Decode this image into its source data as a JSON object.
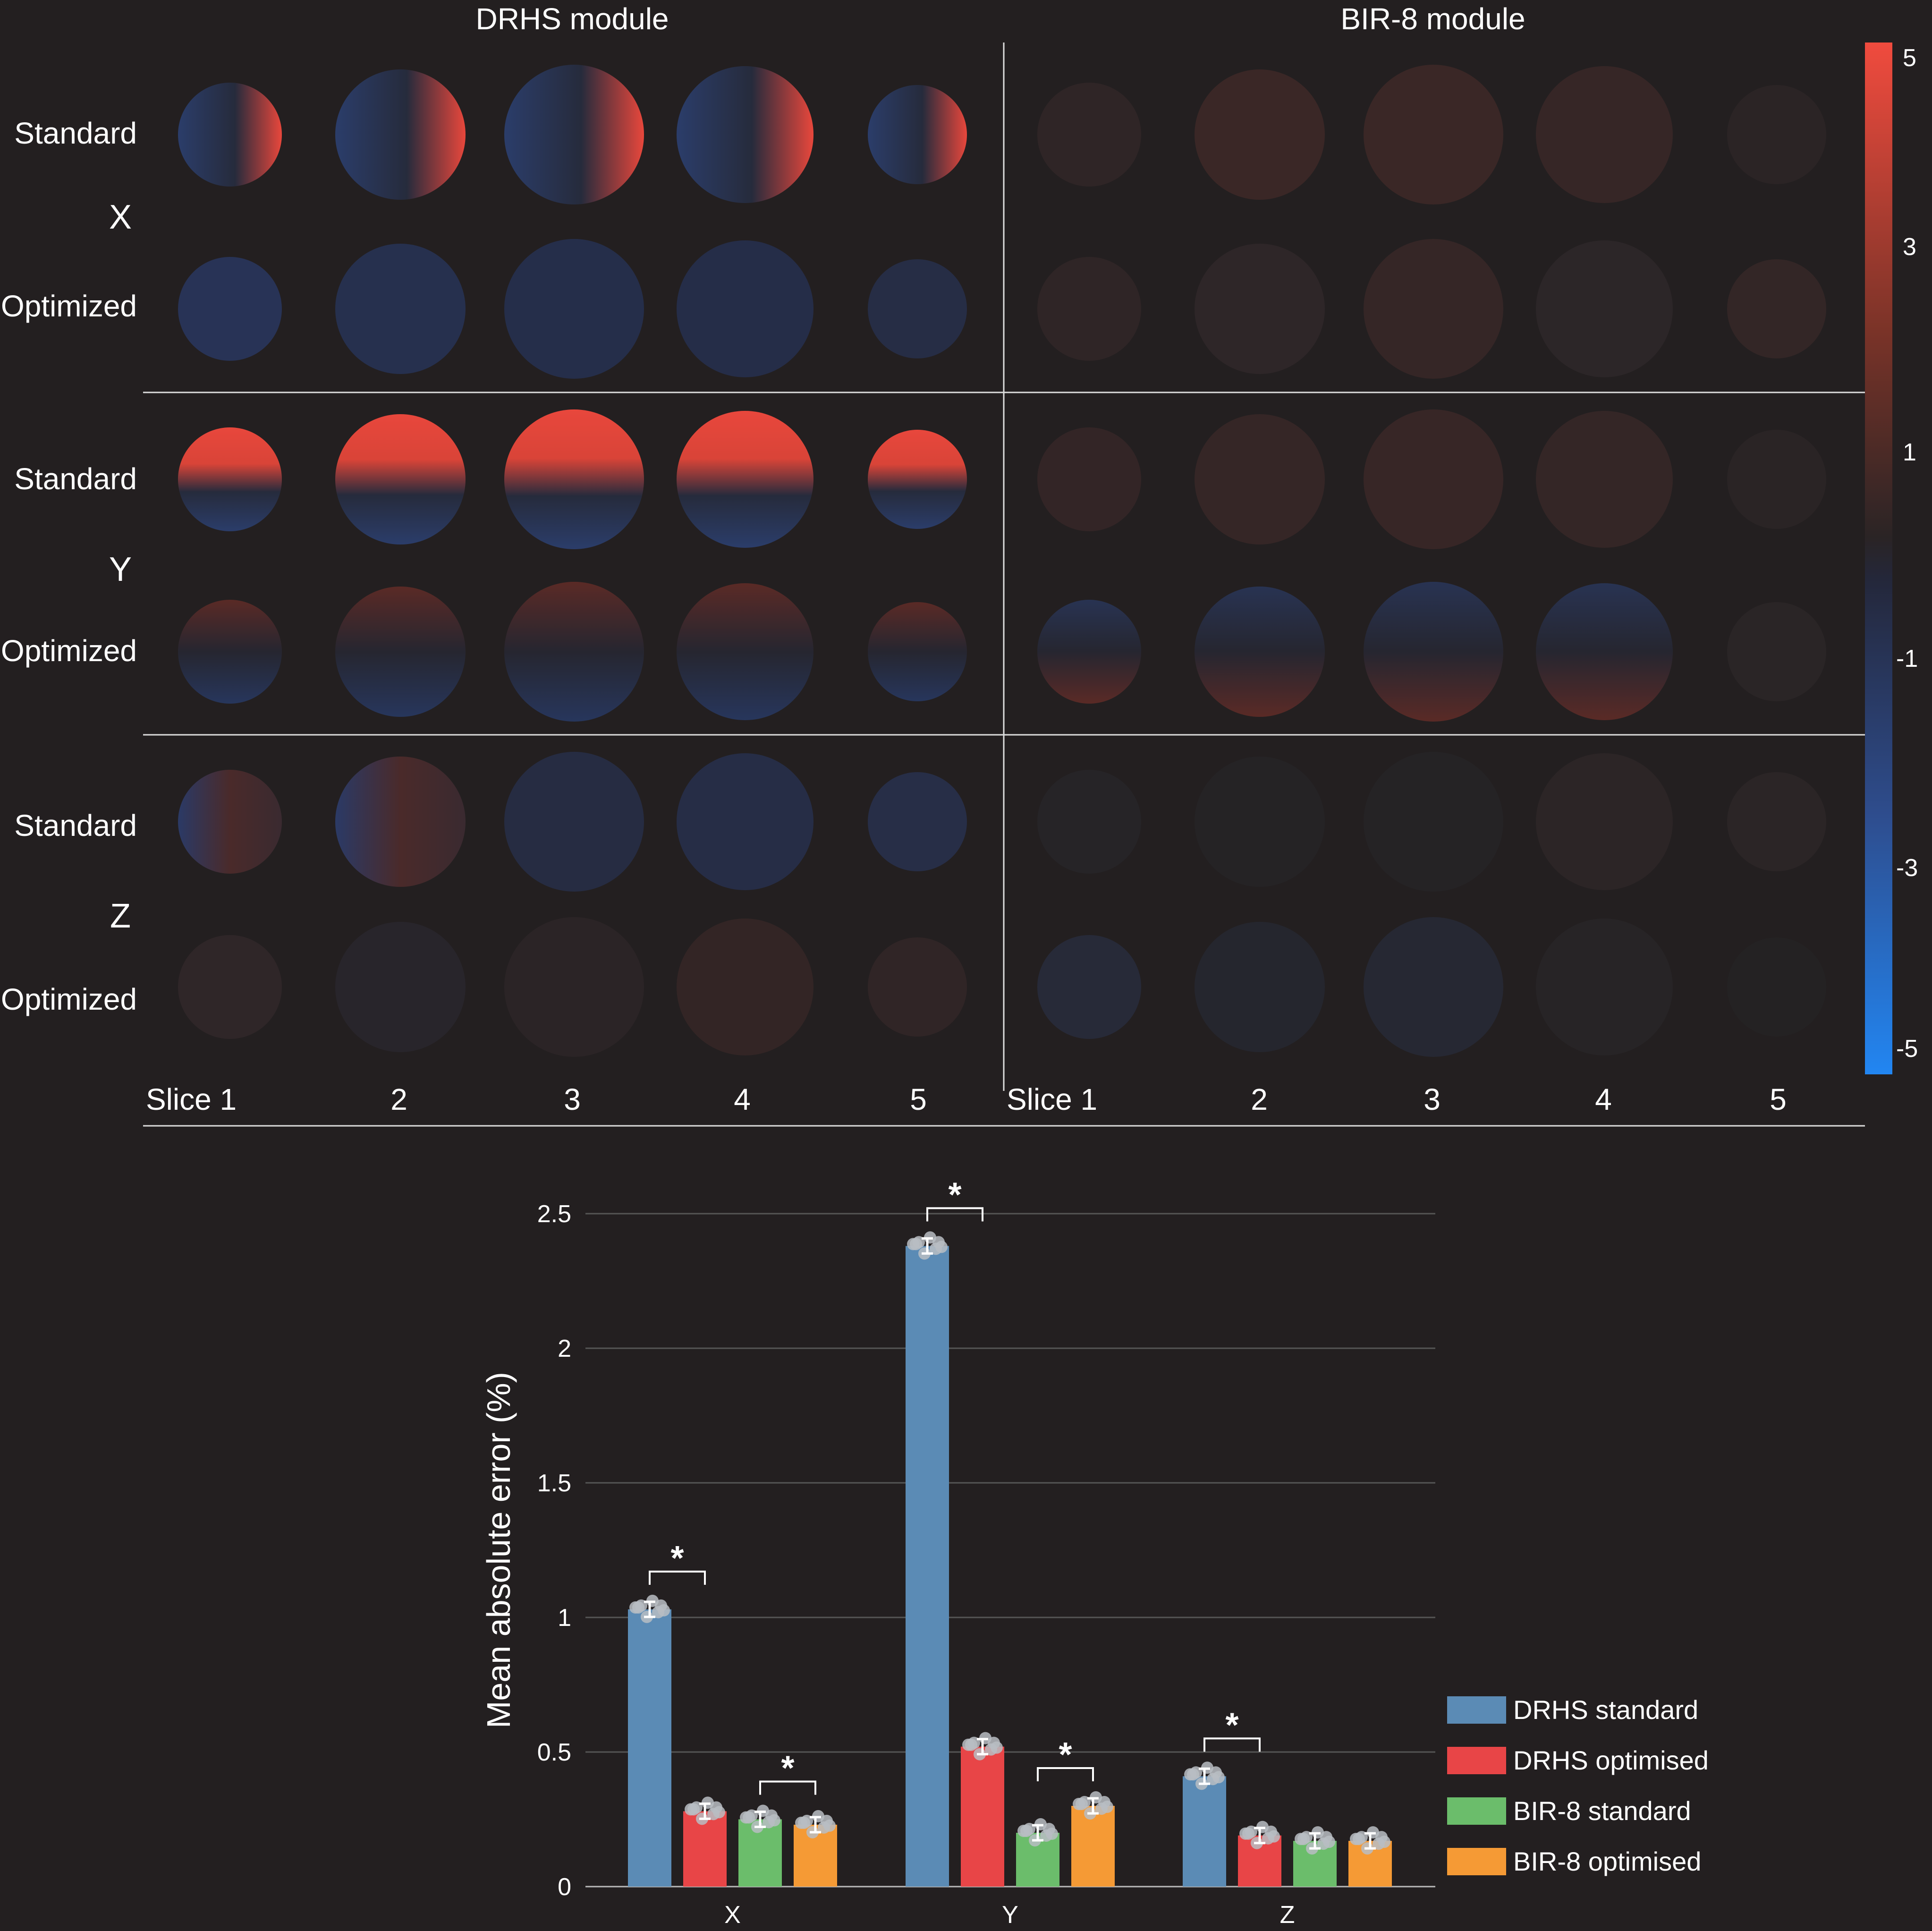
{
  "colors": {
    "background": "#231f20",
    "map_positive": "#e8473c",
    "map_negative": "#2a3a63",
    "drhs_standard": "#5b8bb5",
    "drhs_optimised": "#e84547",
    "bir8_standard": "#6bbd6b",
    "bir8_optimised": "#f59a35"
  },
  "maps": {
    "headers": [
      "DRHS module",
      "BIR-8 module"
    ],
    "row_groups": [
      {
        "axis": "X",
        "rows": [
          "Standard",
          "Optimized"
        ]
      },
      {
        "axis": "Y",
        "rows": [
          "Standard",
          "Optimized"
        ]
      },
      {
        "axis": "Z",
        "rows": [
          "Standard",
          "Optimized"
        ]
      }
    ],
    "slice_labels": [
      "Slice 1",
      "2",
      "3",
      "4",
      "5"
    ],
    "colorbar_ticks": [
      "5",
      "3",
      "1",
      "-1",
      "-3",
      "-5"
    ]
  },
  "chart_data": {
    "type": "bar",
    "title": "",
    "xlabel": "",
    "ylabel": "Mean absolute error (%)",
    "categories": [
      "X",
      "Y",
      "Z"
    ],
    "ylim": [
      0,
      2.5
    ],
    "yticks": [
      "0",
      "0.5",
      "1",
      "1.5",
      "2",
      "2.5"
    ],
    "grid": true,
    "legend_position": "right",
    "series": [
      {
        "name": "DRHS standard",
        "values": [
          1.03,
          2.38,
          0.41
        ]
      },
      {
        "name": "DRHS optimised",
        "values": [
          0.28,
          0.52,
          0.19
        ]
      },
      {
        "name": "BIR-8 standard",
        "values": [
          0.25,
          0.2,
          0.17
        ]
      },
      {
        "name": "BIR-8 optimised",
        "values": [
          0.23,
          0.3,
          0.17
        ]
      }
    ],
    "significance_marker": "*"
  }
}
